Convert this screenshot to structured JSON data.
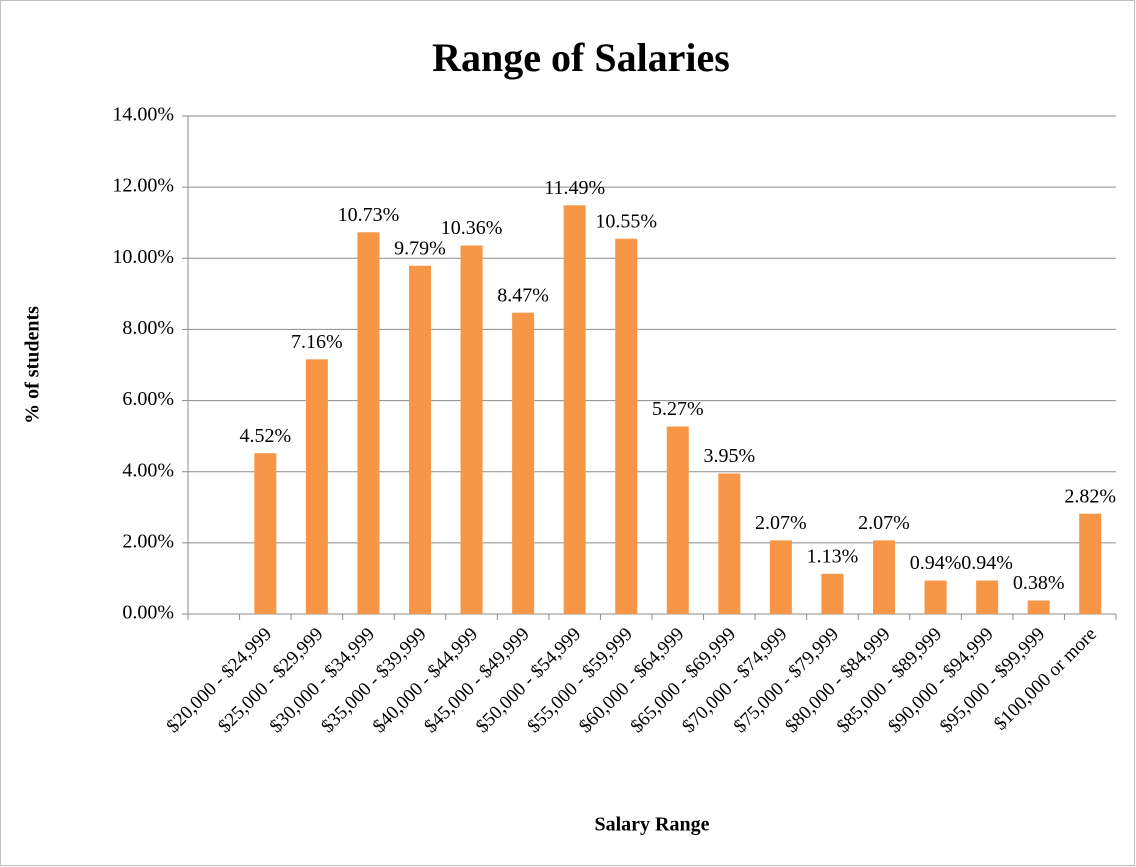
{
  "chart_data": {
    "type": "bar",
    "title": "Range of Salaries",
    "x_label": "Salary Range",
    "y_label": "% of students",
    "categories": [
      null,
      "$20,000 - $24,999",
      "$25,000 - $29,999",
      "$30,000 - $34,999",
      "$35,000 - $39,999",
      "$40,000 - $44,999",
      "$45,000 - $49,999",
      "$50,000 - $54,999",
      "$55,000 - $59,999",
      "$60,000 - $64,999",
      "$65,000 - $69,999",
      "$70,000 - $74,999",
      "$75,000 - $79,999",
      "$80,000 - $84,999",
      "$85,000 - $89,999",
      "$90,000 - $94,999",
      "$95,000 - $99,999",
      "$100,000 or more"
    ],
    "values": [
      null,
      4.52,
      7.16,
      10.73,
      9.79,
      10.36,
      8.47,
      11.49,
      10.55,
      5.27,
      3.95,
      2.07,
      1.13,
      2.07,
      0.94,
      0.94,
      0.38,
      2.82
    ],
    "value_labels": [
      null,
      "4.52%",
      "7.16%",
      "10.73%",
      "9.79%",
      "10.36%",
      "8.47%",
      "11.49%",
      "10.55%",
      "5.27%",
      "3.95%",
      "2.07%",
      "1.13%",
      "2.07%",
      "0.94%",
      "0.94%",
      "0.38%",
      "2.82%"
    ],
    "color": "#f79646",
    "ylim": [
      0,
      14
    ],
    "yticks": [
      {
        "value": 0,
        "label": "0.00%"
      },
      {
        "value": 2,
        "label": "2.00%"
      },
      {
        "value": 4,
        "label": "4.00%"
      },
      {
        "value": 6,
        "label": "6.00%"
      },
      {
        "value": 8,
        "label": "8.00%"
      },
      {
        "value": 10,
        "label": "10.00%"
      },
      {
        "value": 12,
        "label": "12.00%"
      },
      {
        "value": 14,
        "label": "14.00%"
      }
    ],
    "grid": true
  }
}
